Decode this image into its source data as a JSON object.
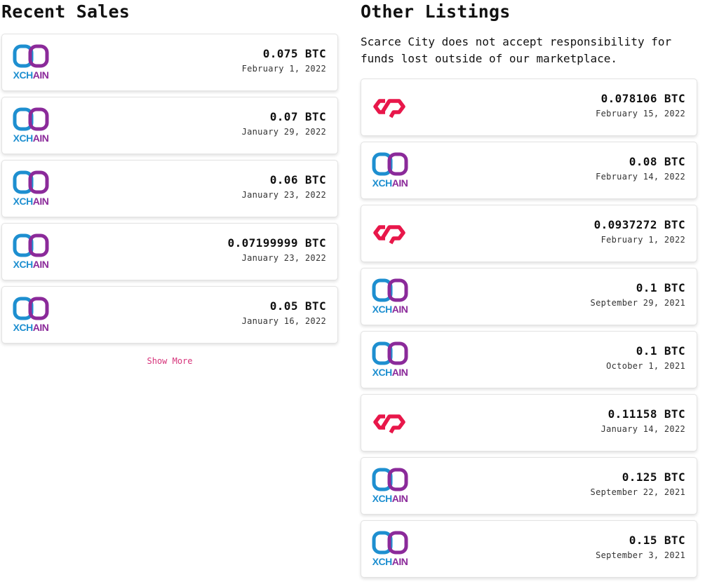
{
  "recent_sales": {
    "title": "Recent Sales",
    "items": [
      {
        "price": "0.075 BTC",
        "date": "February 1, 2022",
        "platform": "xchain"
      },
      {
        "price": "0.07 BTC",
        "date": "January 29, 2022",
        "platform": "xchain"
      },
      {
        "price": "0.06 BTC",
        "date": "January 23, 2022",
        "platform": "xchain"
      },
      {
        "price": "0.07199999 BTC",
        "date": "January 23, 2022",
        "platform": "xchain"
      },
      {
        "price": "0.05 BTC",
        "date": "January 16, 2022",
        "platform": "xchain"
      }
    ],
    "show_more_label": "Show More"
  },
  "other_listings": {
    "title": "Other Listings",
    "disclaimer": "Scarce City does not accept responsibility for funds lost outside of our marketplace.",
    "items": [
      {
        "price": "0.078106 BTC",
        "date": "February 15, 2022",
        "platform": "counterparty"
      },
      {
        "price": "0.08 BTC",
        "date": "February 14, 2022",
        "platform": "xchain"
      },
      {
        "price": "0.0937272 BTC",
        "date": "February 1, 2022",
        "platform": "counterparty"
      },
      {
        "price": "0.1 BTC",
        "date": "September 29, 2021",
        "platform": "xchain"
      },
      {
        "price": "0.1 BTC",
        "date": "October 1, 2021",
        "platform": "xchain"
      },
      {
        "price": "0.11158 BTC",
        "date": "January 14, 2022",
        "platform": "counterparty"
      },
      {
        "price": "0.125 BTC",
        "date": "September 22, 2021",
        "platform": "xchain"
      },
      {
        "price": "0.15 BTC",
        "date": "September 3, 2021",
        "platform": "xchain"
      }
    ]
  },
  "logos": {
    "xchain": {
      "icon": "xchain-logo-icon",
      "label": "XCHAIN",
      "color_a": "#1e8fd0",
      "color_b": "#8b2a9a"
    },
    "counterparty": {
      "icon": "counterparty-logo-icon",
      "color": "#e8174a"
    }
  },
  "colors": {
    "link": "#d6337a"
  }
}
